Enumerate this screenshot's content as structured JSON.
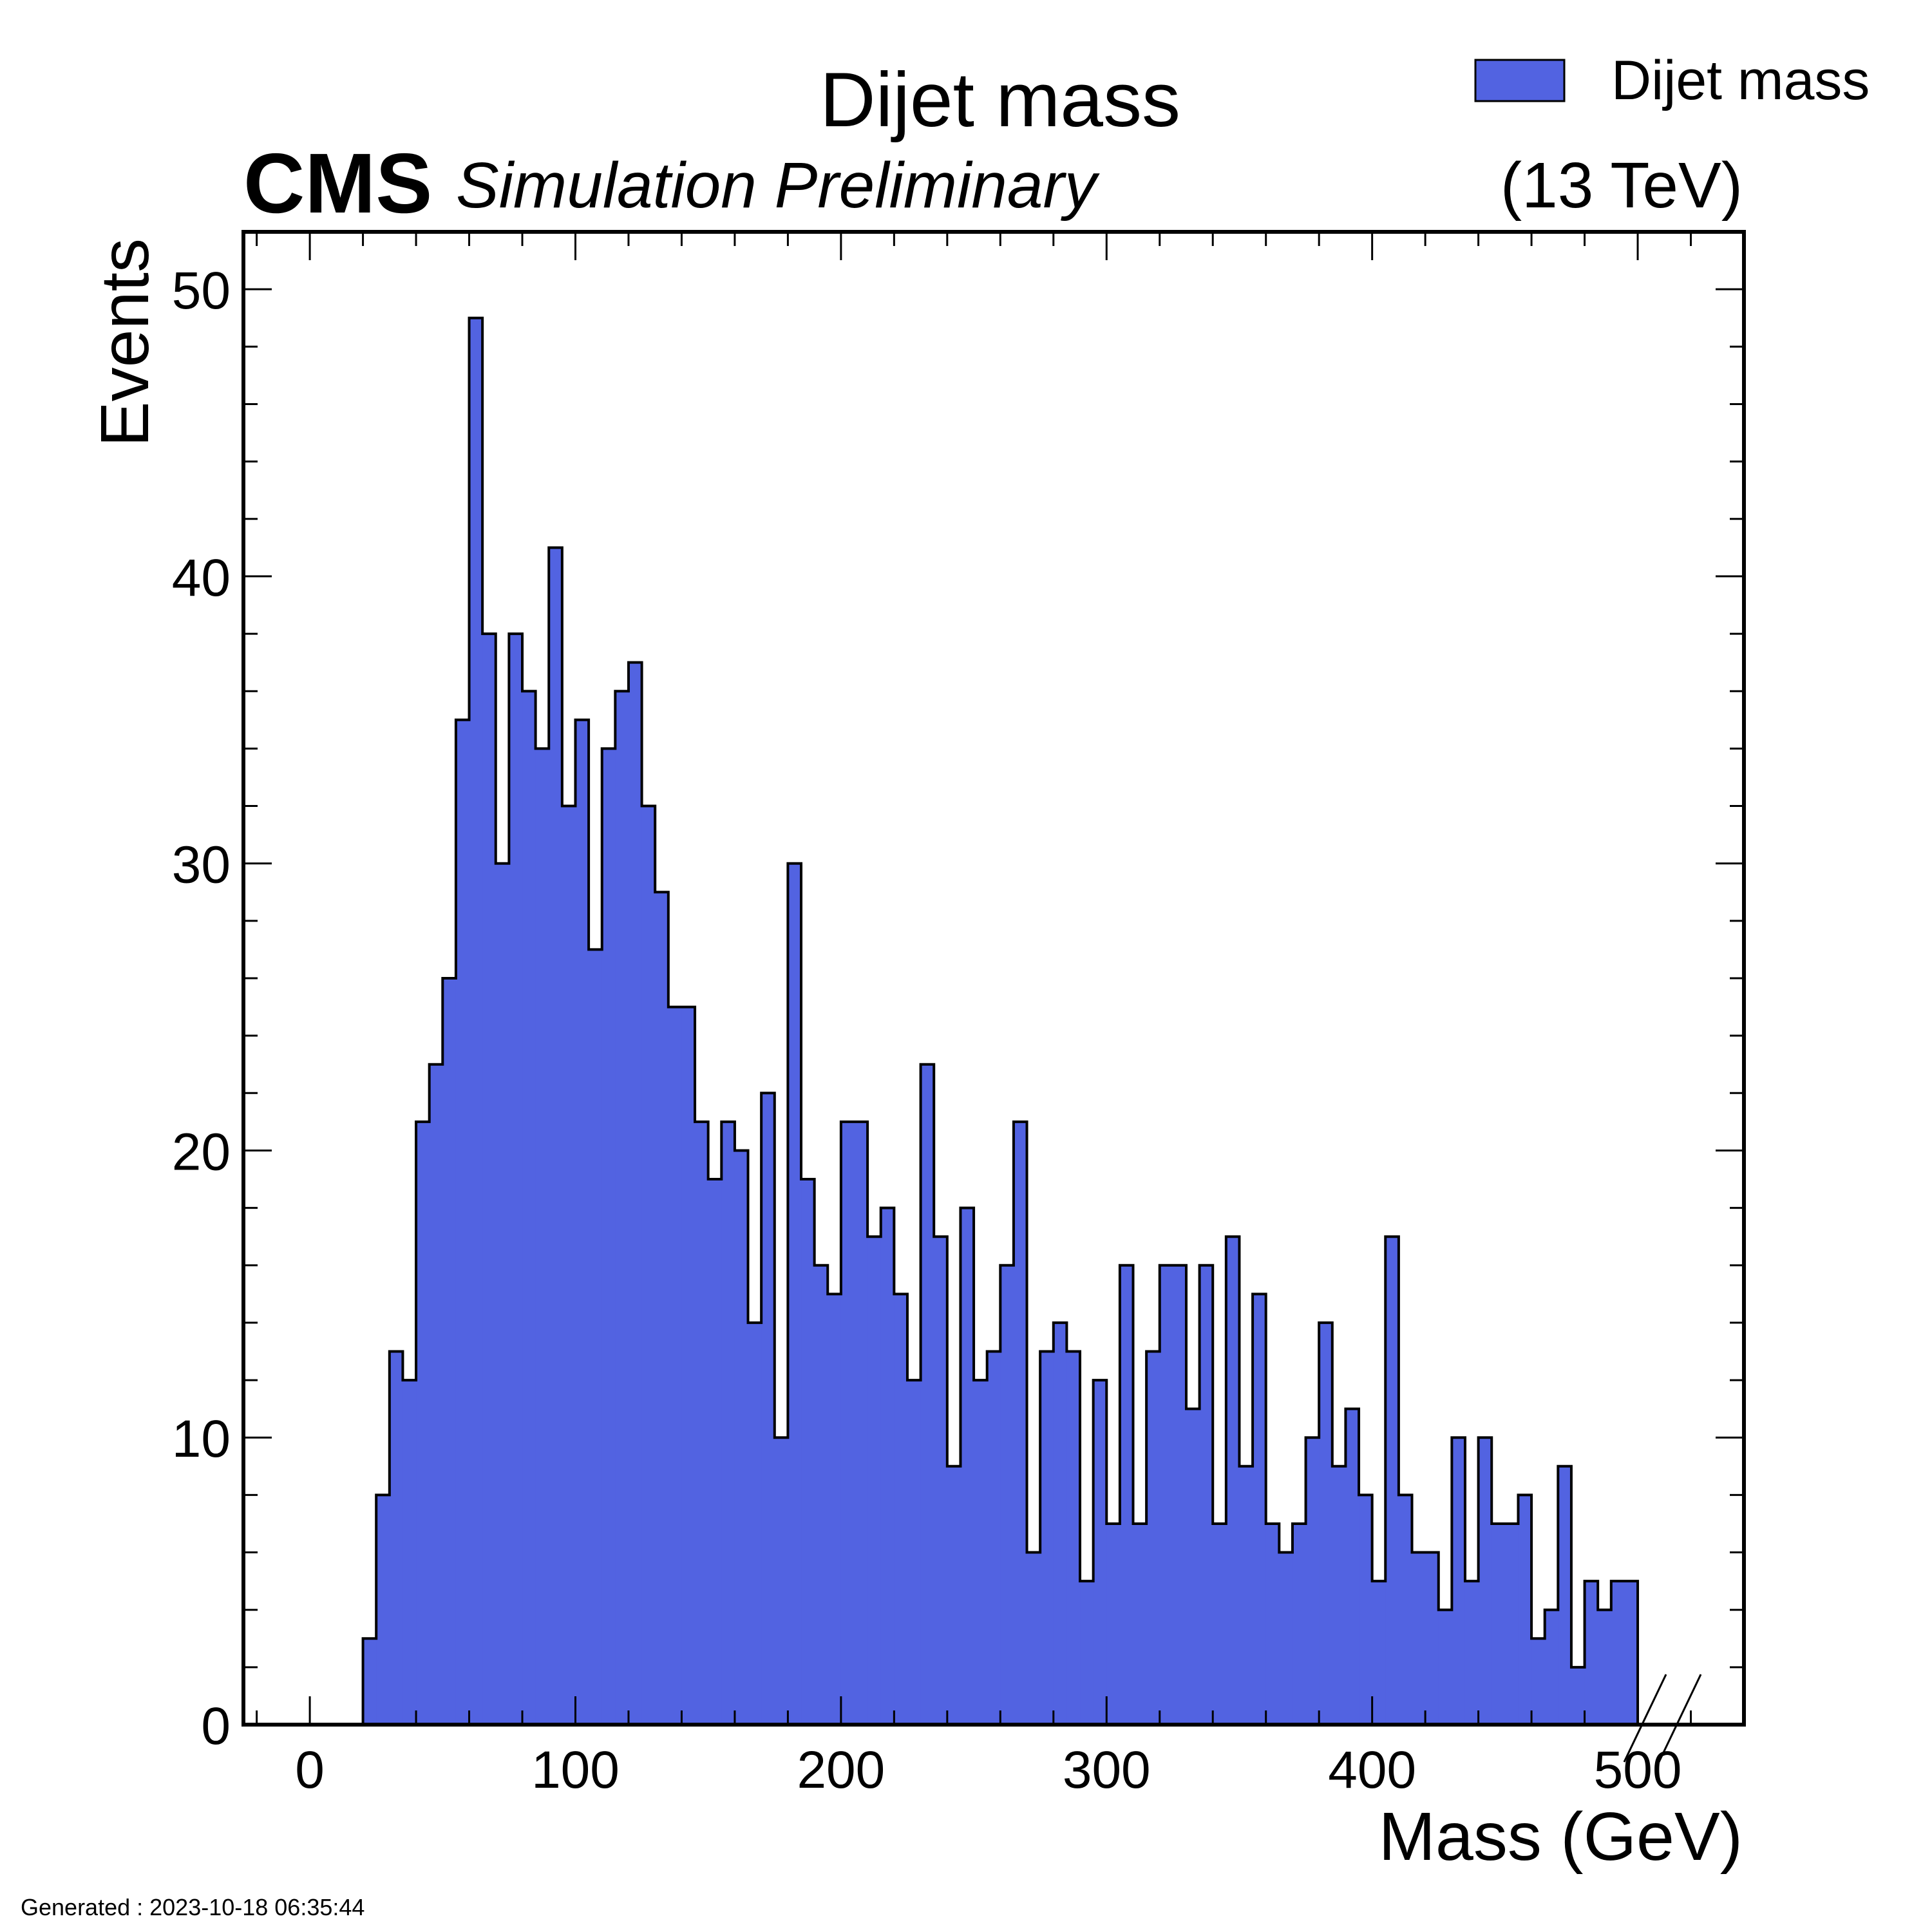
{
  "header": {
    "title": "Dijet mass",
    "experiment": "CMS",
    "status": "Simulation Preliminary",
    "energy": "(13 TeV)"
  },
  "legend": {
    "label": "Dijet mass",
    "position": "top-right"
  },
  "footer": {
    "generated": "Generated : 2023-10-18 06:35:44"
  },
  "colors": {
    "fill": "#5263e1",
    "edge": "#000000"
  },
  "chart_data": {
    "type": "histogram",
    "title": "Dijet mass",
    "xlabel": "Mass (GeV)",
    "ylabel": "Events",
    "xlim": [
      -25,
      540
    ],
    "ylim": [
      0,
      52
    ],
    "x_ticks": [
      0,
      100,
      200,
      300,
      400,
      500
    ],
    "y_ticks": [
      0,
      10,
      20,
      30,
      40,
      50
    ],
    "bin_edges_start": 20,
    "bin_width": 5,
    "series": [
      {
        "name": "Dijet mass",
        "values": [
          3,
          8,
          13,
          12,
          21,
          23,
          26,
          35,
          49,
          38,
          30,
          38,
          36,
          34,
          41,
          32,
          35,
          27,
          34,
          36,
          37,
          32,
          29,
          25,
          25,
          21,
          19,
          21,
          20,
          14,
          22,
          10,
          30,
          19,
          16,
          15,
          21,
          21,
          17,
          18,
          15,
          12,
          23,
          17,
          9,
          18,
          12,
          13,
          16,
          21,
          6,
          13,
          14,
          13,
          5,
          12,
          7,
          16,
          7,
          13,
          16,
          16,
          11,
          16,
          7,
          17,
          9,
          15,
          7,
          6,
          7,
          10,
          14,
          9,
          11,
          8,
          5,
          17,
          8,
          6,
          6,
          4,
          10,
          5,
          10,
          7,
          7,
          8,
          3,
          4,
          9,
          2,
          5,
          4,
          5,
          5
        ]
      }
    ],
    "axis_break": "x-axis break marks near 500 (two diagonal slashes)",
    "grid": false
  }
}
